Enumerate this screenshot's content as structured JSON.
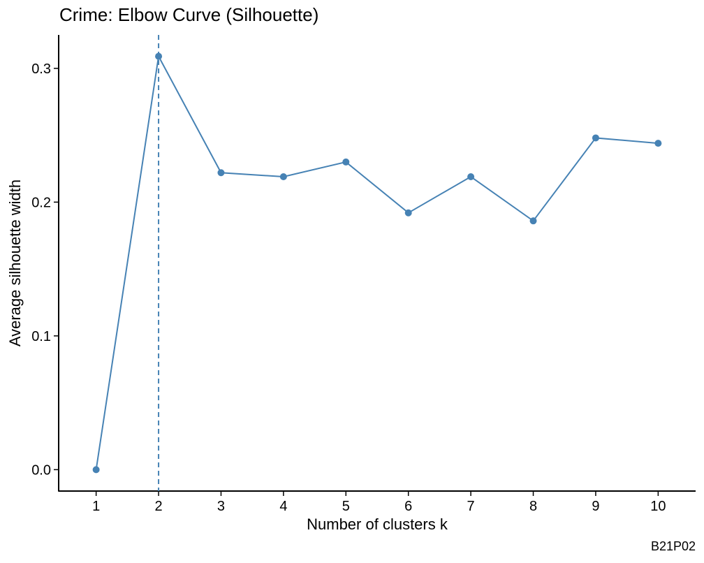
{
  "chart_data": {
    "type": "line",
    "title": "Crime: Elbow Curve (Silhouette)",
    "xlabel": "Number of clusters k",
    "ylabel": "Average silhouette width",
    "x": [
      1,
      2,
      3,
      4,
      5,
      6,
      7,
      8,
      9,
      10
    ],
    "series": [
      {
        "values": [
          0.0,
          0.309,
          0.222,
          0.219,
          0.23,
          0.192,
          0.219,
          0.186,
          0.248,
          0.244
        ]
      }
    ],
    "x_ticks": [
      "1",
      "2",
      "3",
      "4",
      "5",
      "6",
      "7",
      "8",
      "9",
      "10"
    ],
    "y_ticks": [
      "0.0",
      "0.1",
      "0.2",
      "0.3"
    ],
    "y_tick_values": [
      0.0,
      0.1,
      0.2,
      0.3
    ],
    "ylim": [
      -0.016,
      0.325
    ],
    "xlim": [
      0.4,
      10.6
    ],
    "vline_x": 2,
    "grid": false,
    "colors": {
      "series": "#4682B4",
      "axis": "#000000"
    }
  },
  "caption": "B21P02"
}
